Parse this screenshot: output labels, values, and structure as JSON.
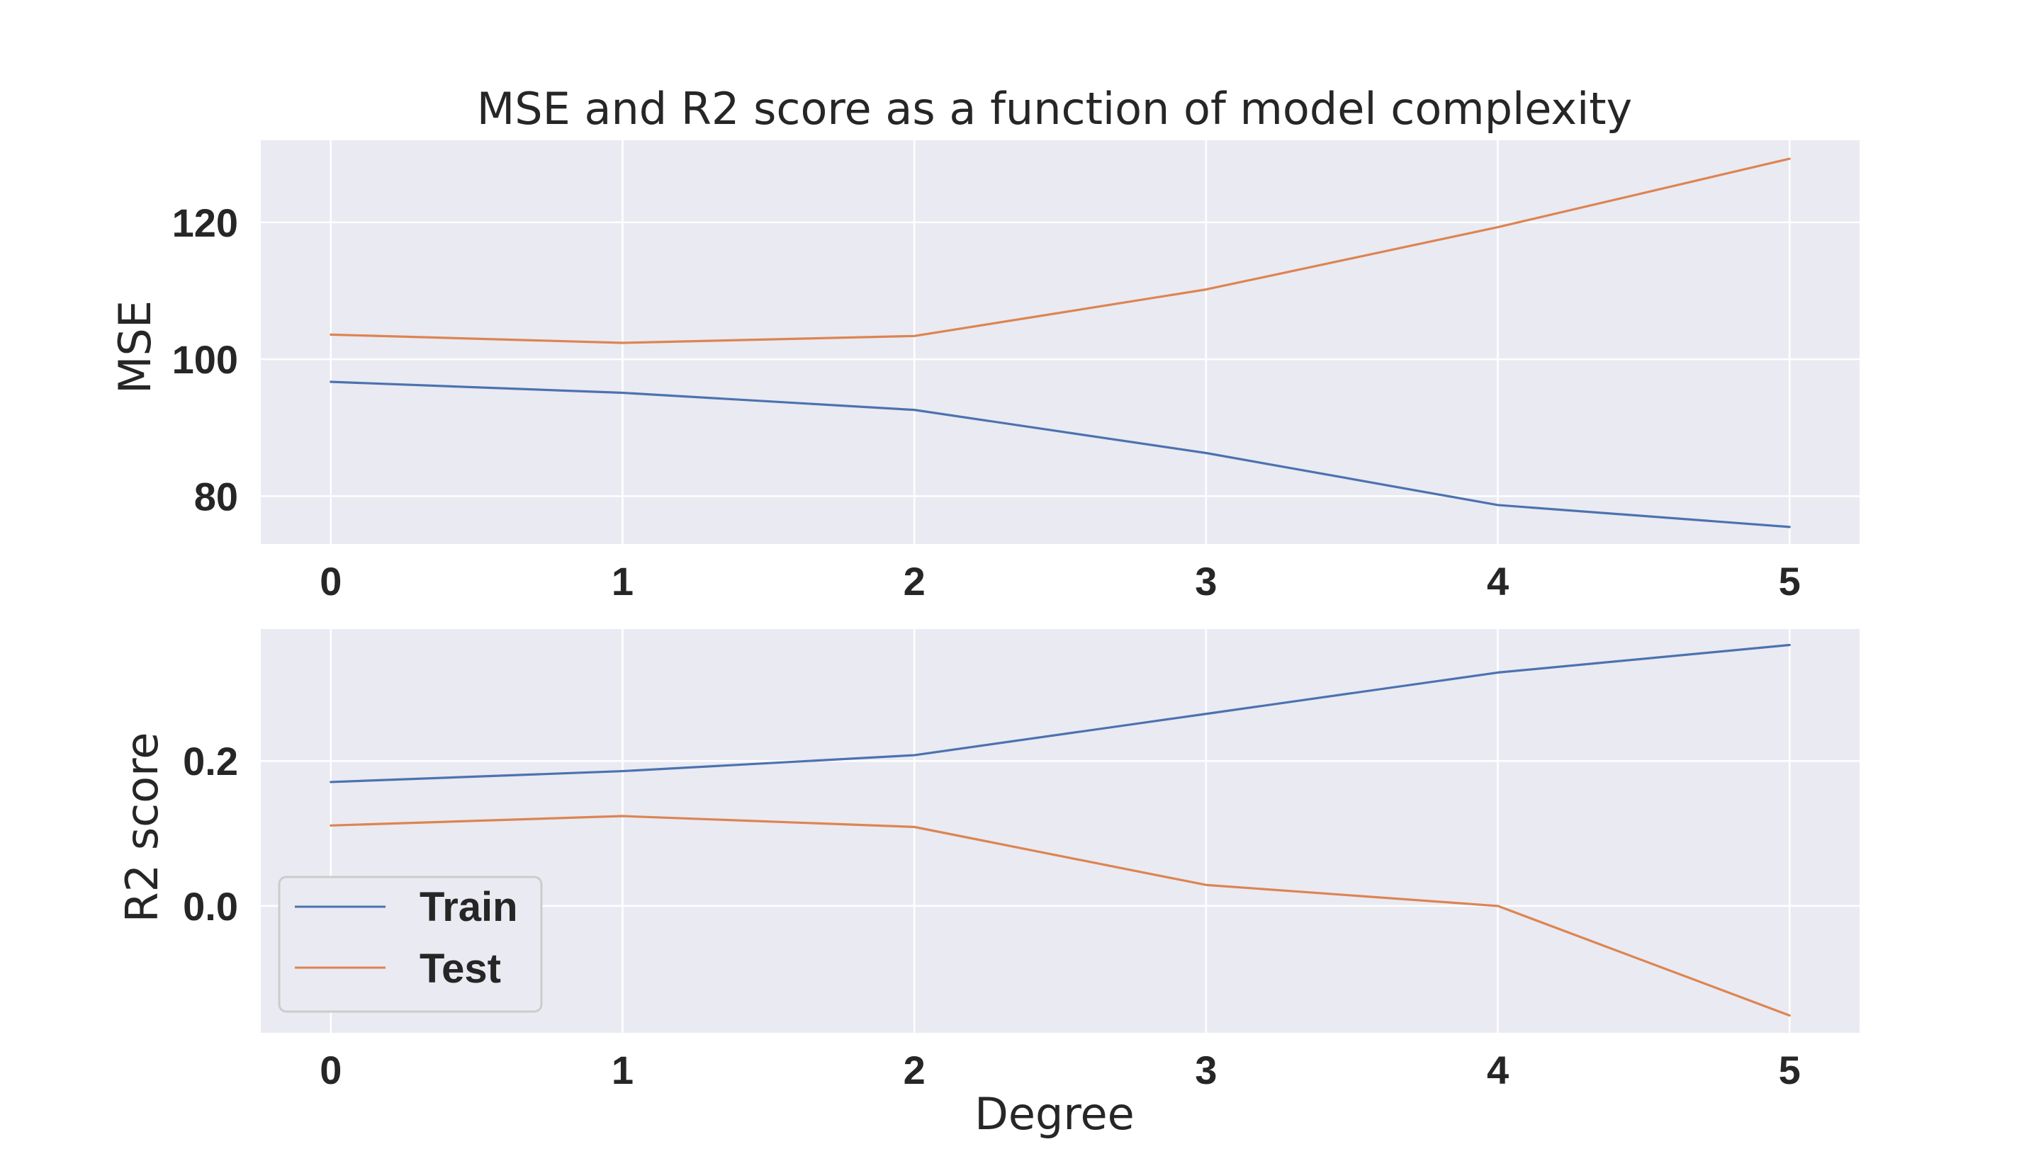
{
  "chart_data": [
    {
      "type": "line",
      "title": "MSE and R2 score as a function of model complexity",
      "xlabel": "",
      "ylabel": "MSE",
      "x": [
        0,
        1,
        2,
        3,
        4,
        5
      ],
      "xticks": [
        "0",
        "1",
        "2",
        "3",
        "4",
        "5"
      ],
      "xlim": [
        -0.24,
        5.24
      ],
      "yticks": [
        "80",
        "100",
        "120"
      ],
      "ylim": [
        73,
        132
      ],
      "grid": true,
      "series": [
        {
          "name": "Train",
          "color": "#4c72b0",
          "values": [
            96.7,
            95.1,
            92.6,
            86.3,
            78.7,
            75.5
          ]
        },
        {
          "name": "Test",
          "color": "#dd8452",
          "values": [
            103.6,
            102.4,
            103.4,
            110.2,
            119.3,
            129.3
          ]
        }
      ]
    },
    {
      "type": "line",
      "title": "",
      "xlabel": "Degree",
      "ylabel": "R2 score",
      "x": [
        0,
        1,
        2,
        3,
        4,
        5
      ],
      "xticks": [
        "0",
        "1",
        "2",
        "3",
        "4",
        "5"
      ],
      "xlim": [
        -0.24,
        5.24
      ],
      "yticks": [
        "0.0",
        "0.2"
      ],
      "ylim": [
        -0.175,
        0.382
      ],
      "grid": true,
      "legend": {
        "position": "lower-left",
        "entries": [
          "Train",
          "Test"
        ]
      },
      "series": [
        {
          "name": "Train",
          "color": "#4c72b0",
          "values": [
            0.171,
            0.186,
            0.208,
            0.265,
            0.322,
            0.36
          ]
        },
        {
          "name": "Test",
          "color": "#dd8452",
          "values": [
            0.111,
            0.124,
            0.109,
            0.029,
            0.0,
            -0.151
          ]
        }
      ]
    }
  ],
  "colors": {
    "plot_background": "#eaeaf2",
    "grid": "#ffffff",
    "text": "#262626"
  }
}
